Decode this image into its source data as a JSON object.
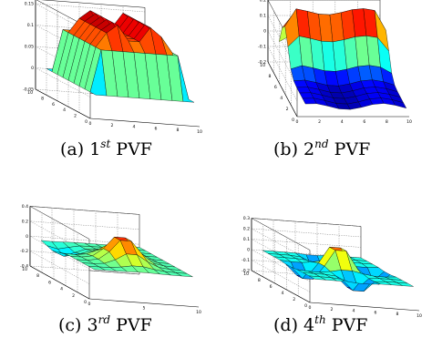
{
  "colors": {
    "cmap": [
      "#00008f",
      "#0000ff",
      "#0080ff",
      "#00ffff",
      "#80ff80",
      "#ffff00",
      "#ff8000",
      "#ff0000",
      "#800000"
    ]
  },
  "panels": [
    {
      "id": "a",
      "caption": {
        "label": "(a) 1",
        "sup": "st",
        "suffix": " PVF"
      },
      "chart_data": {
        "type": "surface",
        "kind": "plateau",
        "x": [
          1,
          2,
          3,
          4,
          5,
          6,
          7,
          8,
          9,
          10
        ],
        "y": [
          1,
          2,
          3,
          4,
          5,
          6,
          7,
          8,
          9,
          10
        ],
        "zlim": [
          -0.05,
          0.16
        ],
        "z_ticks": [
          "-0.05",
          "0",
          "0.05",
          "0.1",
          "0.15"
        ],
        "x_ticks": [
          "0",
          "2",
          "4",
          "6",
          "8",
          "10"
        ],
        "y_ticks": [
          "0",
          "2",
          "4",
          "6",
          "8",
          "10"
        ],
        "grid": true
      }
    },
    {
      "id": "b",
      "caption": {
        "label": "(b) 2",
        "sup": "nd",
        "suffix": " PVF"
      },
      "chart_data": {
        "type": "surface",
        "kind": "ridge",
        "x": [
          1,
          2,
          3,
          4,
          5,
          6,
          7,
          8,
          9,
          10
        ],
        "y": [
          1,
          2,
          3,
          4,
          5,
          6,
          7,
          8,
          9,
          10
        ],
        "zlim": [
          -0.2,
          0.2
        ],
        "z_ticks": [
          "-0.2",
          "-0.1",
          "0",
          "0.1",
          "0.2"
        ],
        "x_ticks": [
          "0",
          "2",
          "4",
          "6",
          "8",
          "10"
        ],
        "y_ticks": [
          "0",
          "2",
          "4",
          "6",
          "8",
          "10"
        ],
        "grid": true
      }
    },
    {
      "id": "c",
      "caption": {
        "label": "(c) 3",
        "sup": "rd",
        "suffix": " PVF"
      },
      "chart_data": {
        "type": "surface",
        "kind": "bump",
        "x": [
          1,
          2,
          3,
          4,
          5,
          6,
          7,
          8,
          9,
          10
        ],
        "y": [
          1,
          2,
          3,
          4,
          5,
          6,
          7,
          8,
          9,
          10
        ],
        "zlim": [
          -0.4,
          0.4
        ],
        "z_ticks": [
          "-0.4",
          "-0.2",
          "0",
          "0.2",
          "0.4"
        ],
        "x_ticks": [
          "0",
          "5",
          "10"
        ],
        "y_ticks": [
          "0",
          "2",
          "4",
          "6",
          "8",
          "10"
        ],
        "grid": true
      }
    },
    {
      "id": "d",
      "caption": {
        "label": "(d) 4",
        "sup": "th",
        "suffix": " PVF"
      },
      "chart_data": {
        "type": "surface",
        "kind": "peak",
        "x": [
          1,
          2,
          3,
          4,
          5,
          6,
          7,
          8,
          9,
          10
        ],
        "y": [
          1,
          2,
          3,
          4,
          5,
          6,
          7,
          8,
          9,
          10
        ],
        "zlim": [
          -0.2,
          0.3
        ],
        "z_ticks": [
          "-0.2",
          "-0.1",
          "0",
          "0.1",
          "0.2",
          "0.3"
        ],
        "x_ticks": [
          "0",
          "2",
          "4",
          "6",
          "8",
          "10"
        ],
        "y_ticks": [
          "0",
          "2",
          "4",
          "6",
          "8",
          "10"
        ],
        "grid": true
      }
    }
  ]
}
